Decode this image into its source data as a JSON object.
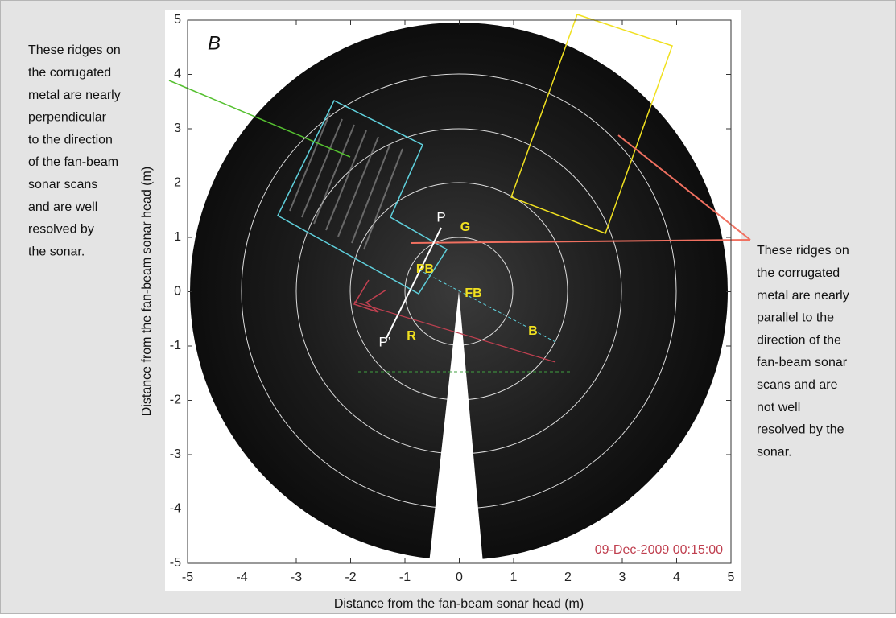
{
  "chart_data": {
    "type": "sonar-image",
    "panel_label": "B",
    "x_label": "Distance from the fan-beam sonar head (m)",
    "y_label": "Distance from the fan-beam sonar head (m)",
    "xlim": [
      -5,
      5
    ],
    "ylim": [
      -5,
      5
    ],
    "xticks": [
      -5,
      -4,
      -3,
      -2,
      -1,
      0,
      1,
      2,
      3,
      4,
      5
    ],
    "yticks": [
      -5,
      -4,
      -3,
      -2,
      -1,
      0,
      1,
      2,
      3,
      4,
      5
    ],
    "timestamp": "09-Dec-2009 00:15:00",
    "point_labels": [
      "G",
      "PB",
      "FB",
      "R",
      "B"
    ],
    "profile_labels": [
      "P",
      "P’"
    ],
    "annotations": [
      {
        "lines": [
          "These ridges on",
          "the corrugated",
          "metal are nearly",
          "perpendicular",
          "to the direction",
          "of the fan-beam",
          "sonar scans",
          "and are well",
          "resolved by",
          "the sonar."
        ]
      },
      {
        "lines": [
          "These ridges on",
          "the corrugated",
          "metal are nearly",
          "parallel to the",
          "direction of the",
          "fan-beam sonar",
          "scans and are",
          "not well",
          "resolved by the",
          "sonar."
        ]
      }
    ]
  }
}
